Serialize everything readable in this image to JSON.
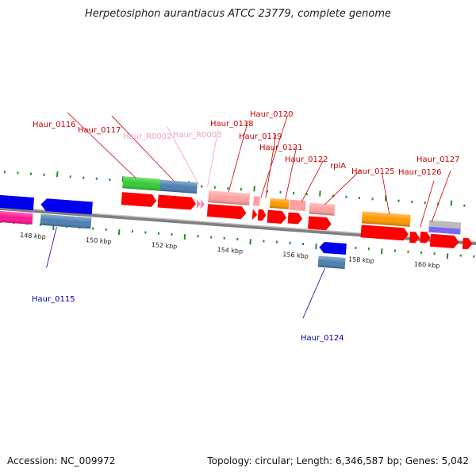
{
  "title": "Herpetosiphon aurantiacus ATCC 23779, complete genome",
  "footer": {
    "accession": "Accession: NC_009972",
    "summary": "Topology: circular; Length: 6,346,587 bp; Genes: 5,042"
  },
  "ticks": [
    "148 kbp",
    "150 kbp",
    "152 kbp",
    "154 kbp",
    "156 kbp",
    "158 kbp",
    "160 kbp"
  ],
  "labels": [
    {
      "text": "Haur_0116",
      "color": "#cc0000"
    },
    {
      "text": "Haur_0117",
      "color": "#cc0000"
    },
    {
      "text": "Haur_R0002",
      "color": "#f0a0c0"
    },
    {
      "text": "Haur_R0003",
      "color": "#f0a0c0"
    },
    {
      "text": "Haur_0118",
      "color": "#cc0000"
    },
    {
      "text": "Haur_0120",
      "color": "#cc0000"
    },
    {
      "text": "Haur_0119",
      "color": "#cc0000"
    },
    {
      "text": "Haur_0121",
      "color": "#cc0000"
    },
    {
      "text": "Haur_0122",
      "color": "#cc0000"
    },
    {
      "text": "rplA",
      "color": "#cc0000"
    },
    {
      "text": "Haur_0125",
      "color": "#cc0000"
    },
    {
      "text": "Haur_0126",
      "color": "#cc0000"
    },
    {
      "text": "Haur_0127",
      "color": "#cc0000"
    },
    {
      "text": "Haur_0115",
      "color": "#0000aa"
    },
    {
      "text": "Haur_0124",
      "color": "#0000aa"
    }
  ],
  "colors": {
    "cds": "#ff0000",
    "reverse_cds": "#0000ff",
    "rna": "#ffa0a0",
    "backbone": "#808080",
    "tick": "#2a8a2a"
  }
}
